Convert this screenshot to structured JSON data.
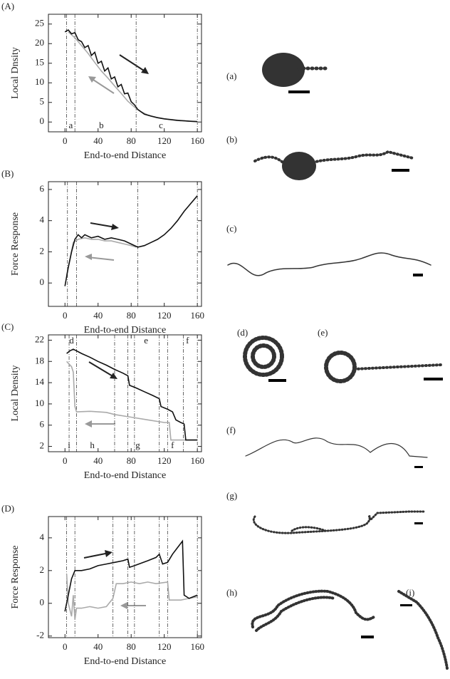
{
  "chart_data": [
    {
      "type": "line",
      "label": "(A)",
      "xlabel": "End-to-end Distance",
      "ylabel": "Local Dnsity",
      "xlim": [
        -20,
        165
      ],
      "ylim": [
        -2.5,
        27.5
      ],
      "xticks": [
        0,
        40,
        80,
        120,
        160
      ],
      "yticks": [
        0,
        5,
        10,
        15,
        20,
        25
      ],
      "vlines": [
        2,
        12,
        86,
        160
      ],
      "annotations": [
        {
          "text": "a",
          "x": 7,
          "position": "bottom"
        },
        {
          "text": "b",
          "x": 44,
          "position": "bottom"
        },
        {
          "text": "c",
          "x": 116,
          "position": "bottom"
        }
      ],
      "series": [
        {
          "color": "#aaaaaa",
          "x": [
            4,
            12,
            20,
            28,
            36,
            44,
            52,
            60,
            68,
            76,
            84,
            92,
            100,
            110,
            120,
            130,
            140,
            150,
            160
          ],
          "values": [
            23,
            21.5,
            19.5,
            17.5,
            15.2,
            13,
            11.2,
            9.2,
            7.3,
            5.3,
            3.8,
            2.6,
            1.8,
            1.2,
            0.8,
            0.6,
            0.4,
            0.2,
            0.1
          ]
        },
        {
          "color": "#111111",
          "x": [
            0,
            4,
            8,
            12,
            16,
            20,
            24,
            28,
            32,
            36,
            40,
            44,
            48,
            52,
            56,
            60,
            64,
            68,
            72,
            76,
            80,
            84,
            88,
            96,
            104,
            112,
            120,
            128,
            136,
            144,
            152,
            160
          ],
          "values": [
            23,
            23.5,
            22.5,
            22.8,
            21,
            20.5,
            19,
            19.5,
            17,
            17.8,
            15,
            15.5,
            13,
            13.8,
            11,
            11.5,
            9,
            9.6,
            7.2,
            7.4,
            5.2,
            4.4,
            3.2,
            2,
            1.5,
            1.1,
            0.8,
            0.6,
            0.4,
            0.3,
            0.2,
            0.1
          ]
        }
      ]
    },
    {
      "type": "line",
      "label": "(B)",
      "xlabel": "End-to-end Distance",
      "ylabel": "Force Response",
      "xlim": [
        -20,
        165
      ],
      "ylim": [
        -1.5,
        6.5
      ],
      "xticks": [
        0,
        40,
        80,
        120,
        160
      ],
      "yticks": [
        0,
        2,
        4,
        6
      ],
      "vlines": [
        3,
        14,
        88,
        160
      ],
      "annotations": [],
      "series": [
        {
          "color": "#aaaaaa",
          "x": [
            2,
            6,
            10,
            16,
            24,
            32,
            40,
            48,
            56,
            64,
            72,
            80,
            86
          ],
          "values": [
            0.5,
            1.5,
            2.6,
            2.8,
            2.9,
            2.8,
            2.8,
            2.7,
            2.7,
            2.6,
            2.5,
            2.4,
            2.3
          ]
        },
        {
          "color": "#111111",
          "x": [
            0,
            4,
            8,
            12,
            16,
            20,
            24,
            32,
            40,
            48,
            56,
            64,
            72,
            80,
            88,
            96,
            104,
            112,
            120,
            128,
            136,
            144,
            152,
            160
          ],
          "values": [
            -0.2,
            1,
            2,
            2.8,
            3.1,
            2.9,
            3.1,
            2.9,
            3,
            2.8,
            2.9,
            2.8,
            2.7,
            2.5,
            2.3,
            2.4,
            2.6,
            2.8,
            3.1,
            3.5,
            4,
            4.6,
            5.1,
            5.6
          ]
        }
      ]
    },
    {
      "type": "line",
      "label": "(C)",
      "xlabel": "End-to-end Distance",
      "ylabel": "Local Density",
      "xlim": [
        -20,
        165
      ],
      "ylim": [
        1,
        23
      ],
      "xticks": [
        0,
        40,
        80,
        120,
        160
      ],
      "yticks": [
        2,
        6,
        10,
        14,
        18,
        22
      ],
      "vlines": [
        5,
        14,
        60,
        76,
        84,
        114,
        124,
        143,
        160
      ],
      "annotations": [
        {
          "text": "d",
          "x": 8,
          "position": "top"
        },
        {
          "text": "e",
          "x": 98,
          "position": "top"
        },
        {
          "text": "f",
          "x": 148,
          "position": "top"
        },
        {
          "text": "i",
          "x": 5,
          "position": "bottom"
        },
        {
          "text": "h",
          "x": 33,
          "position": "bottom"
        },
        {
          "text": "g",
          "x": 88,
          "position": "bottom"
        },
        {
          "text": "f",
          "x": 130,
          "position": "bottom"
        }
      ],
      "series": [
        {
          "color": "#aaaaaa",
          "x": [
            2,
            8,
            10,
            12,
            14,
            30,
            50,
            60,
            80,
            100,
            120,
            126,
            128,
            160
          ],
          "values": [
            18,
            17,
            16,
            9.5,
            8.5,
            8.6,
            8.4,
            8,
            7.5,
            7,
            6.5,
            6.5,
            3.2,
            3.2
          ]
        },
        {
          "color": "#111111",
          "x": [
            2,
            6,
            10,
            14,
            20,
            30,
            40,
            50,
            60,
            70,
            76,
            78,
            86,
            96,
            106,
            114,
            116,
            124,
            130,
            134,
            140,
            144,
            146,
            160
          ],
          "values": [
            19.5,
            20,
            20.3,
            20,
            19.5,
            18.8,
            18,
            17.3,
            16.5,
            15.8,
            15.3,
            13.5,
            13,
            12.3,
            11.6,
            11,
            9.5,
            9,
            8.5,
            7,
            6.5,
            6.2,
            3.2,
            3.2
          ]
        }
      ]
    },
    {
      "type": "line",
      "label": "(D)",
      "xlabel": "End-to-end Distance",
      "ylabel": "Force Response",
      "xlim": [
        -20,
        165
      ],
      "ylim": [
        -2.1,
        5.3
      ],
      "xticks": [
        0,
        40,
        80,
        120,
        160
      ],
      "yticks": [
        -2,
        0,
        2,
        4
      ],
      "vlines": [
        2,
        12,
        58,
        76,
        84,
        114,
        124,
        160
      ],
      "annotations": [],
      "series": [
        {
          "color": "#aaaaaa",
          "x": [
            2,
            4,
            8,
            10,
            12,
            14,
            20,
            30,
            40,
            50,
            58,
            62,
            70,
            80,
            90,
            100,
            110,
            124,
            126,
            140,
            150,
            160
          ],
          "values": [
            1.8,
            0,
            -0.8,
            0.5,
            -1,
            -0.3,
            -0.3,
            -0.2,
            -0.3,
            -0.2,
            0.3,
            1.2,
            1.2,
            1.3,
            1.2,
            1.3,
            1.2,
            1.3,
            0.2,
            0.2,
            0.3,
            0.4
          ]
        },
        {
          "color": "#111111",
          "x": [
            0,
            4,
            8,
            12,
            20,
            30,
            40,
            50,
            60,
            70,
            76,
            78,
            84,
            100,
            110,
            114,
            118,
            124,
            130,
            136,
            142,
            144,
            150,
            160
          ],
          "values": [
            -0.5,
            0.5,
            1.5,
            2,
            2,
            2.1,
            2.3,
            2.4,
            2.5,
            2.6,
            2.7,
            2.2,
            2.3,
            2.6,
            2.8,
            3,
            2.4,
            2.5,
            3,
            3.4,
            3.8,
            0.5,
            0.3,
            0.5
          ]
        }
      ]
    }
  ],
  "snapshots": [
    "(a)",
    "(b)",
    "(c)",
    "(d)",
    "(e)",
    "(f)",
    "(g)",
    "(h)",
    "(i)"
  ]
}
